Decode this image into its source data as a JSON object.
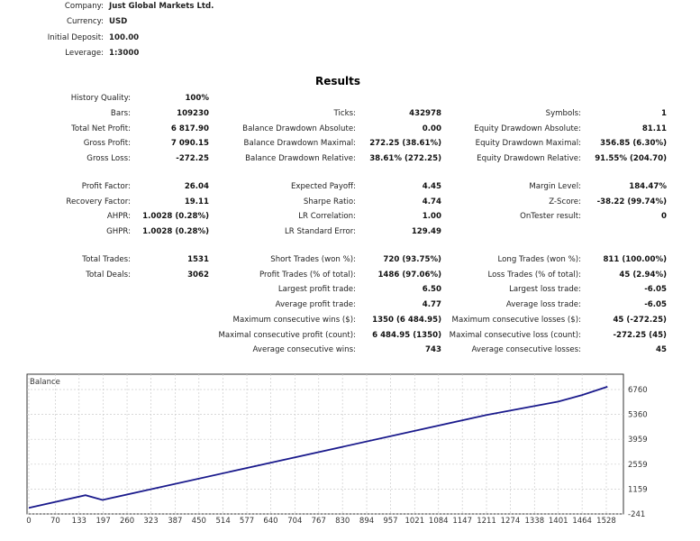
{
  "header": [
    {
      "label": "Company:",
      "value": "Just Global Markets Ltd."
    },
    {
      "label": "Currency:",
      "value": "USD"
    },
    {
      "label": "Initial Deposit:",
      "value": "100.00"
    },
    {
      "label": "Leverage:",
      "value": "1:3000"
    }
  ],
  "results_title": "Results",
  "results_rows": [
    [
      [
        "History Quality:",
        "100%"
      ],
      [
        "",
        ""
      ],
      [
        "",
        ""
      ]
    ],
    [
      [
        "Bars:",
        "109230"
      ],
      [
        "Ticks:",
        "432978"
      ],
      [
        "Symbols:",
        "1"
      ]
    ],
    [
      [
        "Total Net Profit:",
        "6 817.90"
      ],
      [
        "Balance Drawdown Absolute:",
        "0.00"
      ],
      [
        "Equity Drawdown Absolute:",
        "81.11"
      ]
    ],
    [
      [
        "Gross Profit:",
        "7 090.15"
      ],
      [
        "Balance Drawdown Maximal:",
        "272.25 (38.61%)"
      ],
      [
        "Equity Drawdown Maximal:",
        "356.85 (6.30%)"
      ]
    ],
    [
      [
        "Gross Loss:",
        "-272.25"
      ],
      [
        "Balance Drawdown Relative:",
        "38.61% (272.25)"
      ],
      [
        "Equity Drawdown Relative:",
        "91.55% (204.70)"
      ]
    ],
    null,
    [
      [
        "Profit Factor:",
        "26.04"
      ],
      [
        "Expected Payoff:",
        "4.45"
      ],
      [
        "Margin Level:",
        "184.47%"
      ]
    ],
    [
      [
        "Recovery Factor:",
        "19.11"
      ],
      [
        "Sharpe Ratio:",
        "4.74"
      ],
      [
        "Z-Score:",
        "-38.22 (99.74%)"
      ]
    ],
    [
      [
        "AHPR:",
        "1.0028 (0.28%)"
      ],
      [
        "LR Correlation:",
        "1.00"
      ],
      [
        "OnTester result:",
        "0"
      ]
    ],
    [
      [
        "GHPR:",
        "1.0028 (0.28%)"
      ],
      [
        "LR Standard Error:",
        "129.49"
      ],
      [
        "",
        ""
      ]
    ],
    null,
    [
      [
        "Total Trades:",
        "1531"
      ],
      [
        "Short Trades (won %):",
        "720 (93.75%)"
      ],
      [
        "Long Trades (won %):",
        "811 (100.00%)"
      ]
    ],
    [
      [
        "Total Deals:",
        "3062"
      ],
      [
        "Profit Trades (% of total):",
        "1486 (97.06%)"
      ],
      [
        "Loss Trades (% of total):",
        "45 (2.94%)"
      ]
    ],
    [
      [
        "",
        ""
      ],
      [
        "Largest profit trade:",
        "6.50"
      ],
      [
        "Largest loss trade:",
        "-6.05"
      ]
    ],
    [
      [
        "",
        ""
      ],
      [
        "Average profit trade:",
        "4.77"
      ],
      [
        "Average loss trade:",
        "-6.05"
      ]
    ],
    [
      [
        "",
        ""
      ],
      [
        "Maximum consecutive wins ($):",
        "1350 (6 484.95)"
      ],
      [
        "Maximum consecutive losses ($):",
        "45 (-272.25)"
      ]
    ],
    [
      [
        "",
        ""
      ],
      [
        "Maximal consecutive profit (count):",
        "6 484.95 (1350)"
      ],
      [
        "Maximal consecutive loss (count):",
        "-272.25 (45)"
      ]
    ],
    [
      [
        "",
        ""
      ],
      [
        "Average consecutive wins:",
        "743"
      ],
      [
        "Average consecutive losses:",
        "45"
      ]
    ]
  ],
  "chart_data": {
    "type": "line",
    "title": "Balance",
    "x_ticks": [
      0,
      70,
      133,
      197,
      260,
      323,
      387,
      450,
      514,
      577,
      640,
      704,
      767,
      830,
      894,
      957,
      1021,
      1084,
      1147,
      1211,
      1274,
      1338,
      1401,
      1464,
      1528
    ],
    "y_ticks": [
      -241,
      1159,
      2559,
      3959,
      5360,
      6760
    ],
    "xlim": [
      0,
      1531
    ],
    "ylim": [
      -241,
      7000
    ],
    "grid": true,
    "series": [
      {
        "color": "#1a1a8c",
        "points": [
          [
            0,
            100
          ],
          [
            150,
            815
          ],
          [
            195,
            543
          ],
          [
            1211,
            5330
          ],
          [
            1401,
            6080
          ],
          [
            1464,
            6450
          ],
          [
            1531,
            6918
          ]
        ]
      }
    ]
  }
}
